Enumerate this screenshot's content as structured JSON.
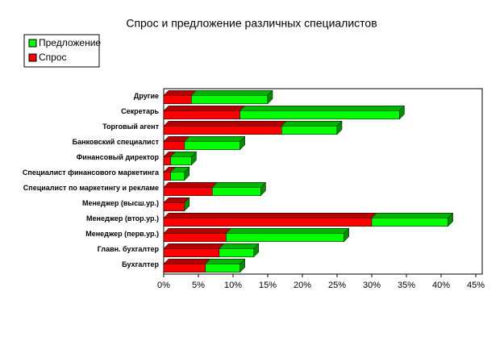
{
  "chart_data": {
    "type": "stacked-bar-horizontal",
    "title": "Спрос и предложение различных специалистов",
    "categories": [
      "Бухгалтер",
      "Главн. бухгалтер",
      "Менеджер (перв.ур.)",
      "Менеджер (втор.ур.)",
      "Менеджер (высш.ур.)",
      "Специалист по маркетингу и рекламе",
      "Специалист финансового маркетинга",
      "Финансовый директор",
      "Банковский специалист",
      "Торговый агент",
      "Секретарь",
      "Другие"
    ],
    "series": [
      {
        "name": "Спрос",
        "color": "#ff0000",
        "values": [
          6,
          8,
          9,
          30,
          3,
          7,
          1,
          1,
          3,
          17,
          11,
          4
        ]
      },
      {
        "name": "Предложение",
        "color": "#00ff00",
        "values": [
          5,
          5,
          17,
          11,
          0,
          7,
          2,
          3,
          8,
          8,
          23,
          11
        ]
      }
    ],
    "xlim": [
      0,
      45
    ],
    "xticks": [
      {
        "value": 0,
        "label": "0%"
      },
      {
        "value": 5,
        "label": "5%"
      },
      {
        "value": 10,
        "label": "10%"
      },
      {
        "value": 15,
        "label": "15%"
      },
      {
        "value": 20,
        "label": "20%"
      },
      {
        "value": 25,
        "label": "25%"
      },
      {
        "value": 30,
        "label": "30%"
      },
      {
        "value": 35,
        "label": "35%"
      },
      {
        "value": 40,
        "label": "40%"
      },
      {
        "value": 45,
        "label": "45%"
      }
    ],
    "legend": "top-left"
  }
}
